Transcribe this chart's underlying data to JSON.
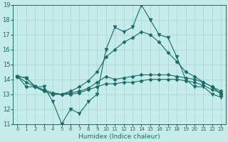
{
  "xlabel": "Humidex (Indice chaleur)",
  "background_color": "#c5ecea",
  "grid_color": "#a8d8d5",
  "line_color": "#1b6b66",
  "xlim": [
    -0.5,
    23.5
  ],
  "ylim": [
    11,
    19
  ],
  "xticks": [
    0,
    1,
    2,
    3,
    4,
    5,
    6,
    7,
    8,
    9,
    10,
    11,
    12,
    13,
    14,
    15,
    16,
    17,
    18,
    19,
    20,
    21,
    22,
    23
  ],
  "yticks": [
    11,
    12,
    13,
    14,
    15,
    16,
    17,
    18,
    19
  ],
  "series": [
    [
      14.2,
      14.1,
      13.5,
      13.2,
      13.0,
      13.0,
      13.0,
      13.1,
      13.3,
      13.5,
      13.7,
      13.7,
      13.8,
      13.8,
      13.9,
      14.0,
      14.0,
      14.0,
      14.0,
      13.9,
      13.8,
      13.6,
      13.3,
      13.1
    ],
    [
      14.2,
      13.5,
      13.5,
      13.2,
      13.0,
      13.0,
      13.1,
      13.2,
      13.4,
      13.8,
      14.2,
      14.0,
      14.1,
      14.2,
      14.3,
      14.3,
      14.3,
      14.3,
      14.2,
      14.1,
      14.0,
      13.8,
      13.5,
      13.2
    ],
    [
      14.2,
      13.8,
      13.5,
      13.3,
      13.1,
      13.0,
      13.2,
      13.5,
      13.9,
      14.5,
      15.5,
      16.0,
      16.5,
      16.8,
      17.2,
      17.0,
      16.5,
      15.8,
      15.2,
      14.5,
      14.2,
      13.8,
      13.5,
      13.0
    ],
    [
      14.2,
      14.1,
      13.5,
      13.5,
      12.5,
      11.0,
      12.0,
      11.7,
      12.5,
      13.0,
      16.0,
      17.5,
      17.2,
      17.5,
      19.0,
      18.0,
      17.0,
      16.8,
      15.5,
      14.0,
      13.5,
      13.5,
      13.0,
      12.8
    ]
  ],
  "marker_styles": [
    "D",
    "D",
    "D",
    "v"
  ],
  "marker_sizes": [
    2.5,
    2.5,
    2.5,
    3.5
  ]
}
